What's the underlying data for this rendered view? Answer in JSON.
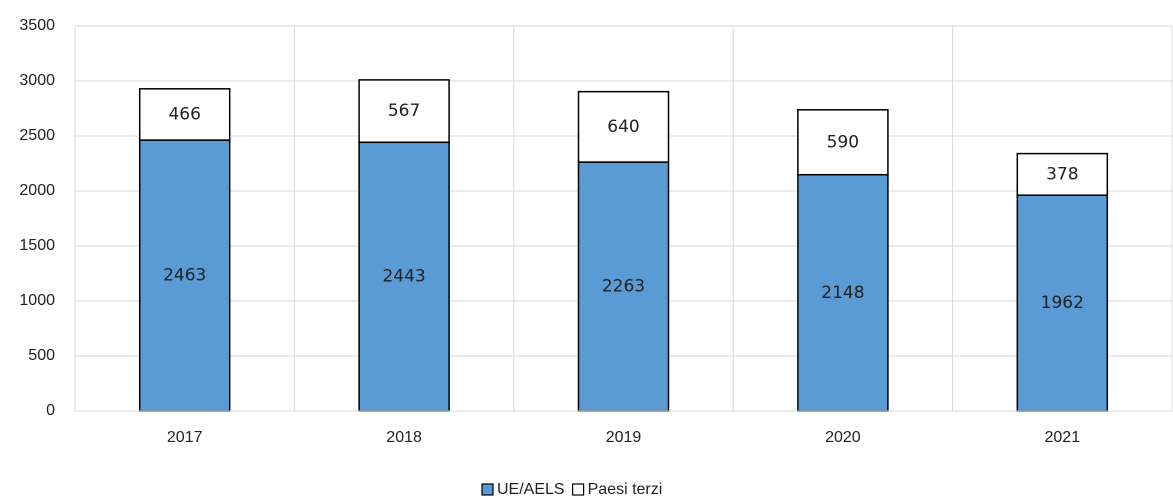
{
  "chart_data": {
    "type": "stacked-bar",
    "categories": [
      "2017",
      "2018",
      "2019",
      "2020",
      "2021"
    ],
    "series": [
      {
        "name": "UE/AELS",
        "color": "#5b9bd5",
        "values": [
          2463,
          2443,
          2263,
          2148,
          1962
        ]
      },
      {
        "name": "Paesi terzi",
        "color": "#ffffff",
        "values": [
          466,
          567,
          640,
          590,
          378
        ]
      }
    ],
    "ylim": [
      0,
      3500
    ],
    "yticks": [
      0,
      500,
      1000,
      1500,
      2000,
      2500,
      3000,
      3500
    ],
    "grid": true,
    "legend": "bottom"
  }
}
